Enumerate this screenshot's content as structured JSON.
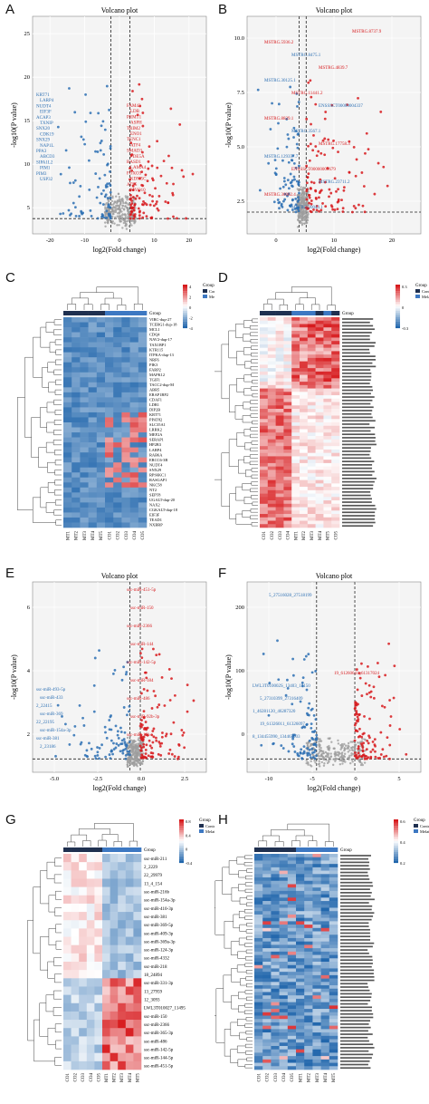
{
  "figure": {
    "panels": {
      "A": {
        "label": "A",
        "title": "Volcano plot",
        "xlabel": "log2(Fold change)",
        "ylabel": "-log10(P value)",
        "xticks": [
          "-20",
          "-10",
          "0",
          "10",
          "20"
        ],
        "yticks": [
          "5",
          "10",
          "15",
          "20",
          "25"
        ],
        "down_labels": [
          "KRT71",
          "LARP4",
          "NUDT4",
          "EIF3F",
          "ACAP3",
          "TXNIP",
          "SNX20",
          "CDK19",
          "SNX29",
          "NAP1L",
          "PPA3",
          "ABCD3",
          "SIPA1L2",
          "PIM1",
          "PIM3",
          "USP32"
        ],
        "up_labels": [
          "FAM42",
          "LDB",
          "PRMT1",
          "ASPH",
          "TRIM2",
          "ENO1",
          "TENC1",
          "ATF4",
          "SMAD3",
          "PDE5A",
          "RASD1",
          "LAMA4",
          "FOXO3",
          "KDM5C",
          "ATF5",
          "MYO10"
        ]
      },
      "B": {
        "label": "B",
        "title": "Volcano plot",
        "xlabel": "log2(Fold change)",
        "ylabel": "-log10(P value)",
        "xticks": [
          "0",
          "10",
          "20"
        ],
        "yticks": [
          "2.5",
          "5.0",
          "7.5",
          "10.0"
        ],
        "top_label": "MSTRG.8737.9",
        "labels": [
          "MSTRG.5936.2",
          "MSTRG.8475.1",
          "MSTRG.4839.7",
          "MSTRG.30125.1",
          "MSTRG.11441.2",
          "ENSSSCT00000004337",
          "MSTRG.8829.1",
          "MSTRG.3567.1",
          "MSTRG.17758.3",
          "MSTRG.129357.7",
          "ENSSSCT00000000679",
          "MSTRG.23711.2",
          "MSTRG.30062.4",
          "MSTRG.30043.1"
        ]
      },
      "C": {
        "label": "C",
        "legend_title": "Group",
        "legend_items": [
          "Control",
          "Melatonin"
        ],
        "scale": [
          "4",
          "2",
          "0",
          "-2",
          "-4"
        ],
        "rows": [
          "VIRC-dup-27",
          "TCERG1-dup-18",
          "MCL1",
          "CDQ4",
          "NAV2-dup-17",
          "TAX1BP1",
          "KTR115",
          "ITPKA-dup-13",
          "NRF6",
          "PIK3",
          "FARP2",
          "MAPK12",
          "TGIF1",
          "TACC2-dup-M",
          "ABR5",
          "ERAP1BP2",
          "CDAF1",
          "LDR1",
          "DIP2B",
          "KRT71",
          "PPAT82",
          "SLC35A1",
          "LRRK2",
          "MEF2A",
          "SERAP1",
          "HP2B3",
          "LARP4",
          "RAB6A",
          "ERCC6-3B",
          "NUDT4",
          "SNX29",
          "RPS6KC1",
          "RASGAP1",
          "NKC58",
          "NT2",
          "SEPT8",
          "UGALT-dup-20",
          "NAX2",
          "CGKALT-dup-18",
          "EIF3F",
          "TEAD1",
          "NXBRP"
        ],
        "cols": [
          "MT1",
          "MT2",
          "MT3",
          "MT4",
          "MT5",
          "CO1",
          "CO2",
          "CO3",
          "CO4",
          "CO5"
        ]
      },
      "D": {
        "label": "D",
        "legend_title": "Group",
        "legend_items": [
          "Control",
          "Melatonin"
        ],
        "scale": [
          "0.3",
          "0",
          "-0.3"
        ],
        "row_count": 62,
        "cols": [
          "CO1",
          "CO2",
          "CO3",
          "CO4",
          "MT1",
          "MT2",
          "MT3",
          "MT4",
          "MT5",
          "CO5"
        ]
      },
      "E": {
        "label": "E",
        "title": "Volcano plot",
        "xlabel": "log2(Fold change)",
        "ylabel": "-log10(P value)",
        "xticks": [
          "-5.0",
          "-2.5",
          "0.0",
          "2.5"
        ],
        "yticks": [
          "2",
          "4",
          "6"
        ],
        "up_labels": [
          "ssc-miR-451-5p",
          "ssc-miR-150",
          "ssc-miR-2366",
          "ssc-miR-144",
          "ssc-miR-142-5p",
          "ssc-miR-184",
          "ssc-miR-486",
          "ssc-miR-92b-3p",
          "ssc-miR-10b"
        ],
        "down_labels": [
          "ssc-miR-493-5p",
          "ssc-miR-433",
          "2_22415",
          "ssc-miR-369",
          "22_22195",
          "ssc-miR-154a-3p",
          "ssc-miR-381",
          "2_23186"
        ]
      },
      "F": {
        "label": "F",
        "title": "Volcano plot",
        "xlabel": "log2(Fold change)",
        "ylabel": "-log10(P value)",
        "xticks": [
          "-10",
          "-5",
          "0",
          "5"
        ],
        "yticks": [
          "0",
          "100",
          "200"
        ],
        "top_label": "5_27516028_27518199",
        "up_label": "19_61260641_61317024",
        "labels": [
          "LWL3T010002S_13403_18150",
          "5_27310399_27316409",
          "1_46281120_46287320",
          "19_61326011_61326097",
          "8_134455990_134463003"
        ]
      },
      "G": {
        "label": "G",
        "legend_title": "Group",
        "legend_items": [
          "Control",
          "Melatonin"
        ],
        "scale": [
          "0.8",
          "0.4",
          "0",
          "-0.4"
        ],
        "rows": [
          "ssc-miR-211",
          "2_2229",
          "22_29979",
          "13_4_154",
          "ssc-miR-216b",
          "ssc-miR-154a-3p",
          "ssc-miR-410-3p",
          "ssc-miR-381",
          "ssc-miR-369-5p",
          "ssc-miR-409-3p",
          "ssc-miR-369a-3p",
          "ssc-miR-124-3p",
          "ssc-miR-4332",
          "ssc-miR-218",
          "18_24894",
          "ssc-miR-331-3p",
          "13_27959",
          "12_3093",
          "LWL3T010027_11495",
          "ssc-miR-150",
          "ssc-miR-2366",
          "ssc-miR-365-3p",
          "ssc-miR-486",
          "ssc-miR-142-5p",
          "ssc-miR-144-5p",
          "ssc-miR-451-5p"
        ],
        "cols": [
          "CO1",
          "CO2",
          "CO3",
          "CO4",
          "CO5",
          "MT1",
          "MT2",
          "MT3",
          "MT4",
          "MT5"
        ]
      },
      "H": {
        "label": "H",
        "legend_title": "Group",
        "legend_items": [
          "Control",
          "Melatonin"
        ],
        "scale": [
          "0.6",
          "0.4",
          "0.2"
        ],
        "row_count": 64,
        "cols": [
          "CO1",
          "CO2",
          "CO3",
          "CO4",
          "CO5",
          "MT1",
          "MT2",
          "MT3",
          "MT4",
          "MT5"
        ]
      }
    },
    "colors": {
      "up": "#d7191c",
      "down": "#2c6fb3",
      "ns": "#9e9e9e",
      "high": "#d7191c",
      "mid": "#ffffff",
      "low": "#2166ac",
      "control": "#1f3050",
      "melatonin": "#3d78c2"
    }
  }
}
